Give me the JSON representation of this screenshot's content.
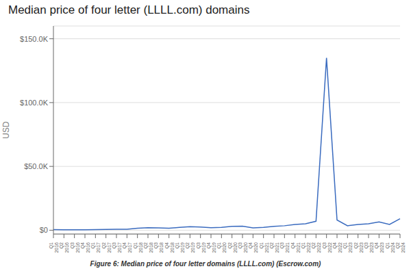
{
  "chart_data": {
    "type": "line",
    "title": "Median price of four letter (LLLL.com) domains",
    "ylabel": "USD",
    "caption": "Figure 6: Median price of four letter domains (LLLL.com) (Escrow.com)",
    "color": "#3a6bbf",
    "grid": true,
    "categories": [
      "Q1\n2016",
      "Q2\n2016",
      "Q3\n2016",
      "Q4\n2016",
      "Q1\n2017",
      "Q2\n2017",
      "Q3\n2017",
      "Q4\n2017",
      "Q1\n2018",
      "Q2\n2018",
      "Q3\n2018",
      "Q4\n2018",
      "Q1\n2019",
      "Q2\n2019",
      "Q3\n2019",
      "Q4\n2019",
      "Q1\n2020",
      "Q2\n2020",
      "Q3\n2020",
      "Q4\n2020",
      "Q1\n2021",
      "Q2\n2021",
      "Q3\n2021",
      "Q4\n2021",
      "Q1\n2022",
      "Q2\n2022",
      "Q3\n2022",
      "Q4\n2022",
      "Q1\n2023",
      "Q2\n2023",
      "Q3\n2023",
      "Q4\n2023",
      "Q1\n2024",
      "Q2\n2024"
    ],
    "values": [
      500,
      400,
      350,
      300,
      500,
      600,
      700,
      800,
      1500,
      2000,
      1800,
      1500,
      2200,
      2800,
      2500,
      2000,
      2200,
      3000,
      3200,
      1800,
      2200,
      3000,
      3500,
      4500,
      5000,
      7000,
      135000,
      8000,
      3500,
      4500,
      5000,
      6500,
      4500,
      9000
    ],
    "ylim": [
      -3000,
      160000
    ],
    "yticks": [
      {
        "value": 0,
        "label": "$0"
      },
      {
        "value": 50000,
        "label": "$50.0K"
      },
      {
        "value": 100000,
        "label": "$100.0K"
      },
      {
        "value": 150000,
        "label": "$150.0K"
      }
    ]
  }
}
